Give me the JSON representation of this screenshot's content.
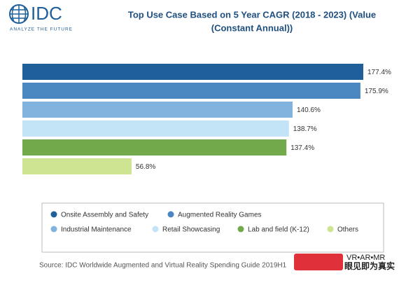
{
  "logo": {
    "name": "IDC",
    "tagline": "ANALYZE THE FUTURE"
  },
  "chart_data": {
    "type": "bar",
    "orientation": "horizontal",
    "title": [
      "Top Use Case Based on 5 Year CAGR  (2018 - 2023) (Value",
      "(Constant Annual))"
    ],
    "series": [
      {
        "name": "Onsite Assembly and Safety",
        "color": "#1f5f9a",
        "values": [
          177.4
        ],
        "value_labels": [
          "177.4%"
        ]
      },
      {
        "name": "Augmented Reality Games",
        "color": "#4a86bf",
        "values": [
          175.9
        ],
        "value_labels": [
          "175.9%"
        ]
      },
      {
        "name": "Industrial Maintenance",
        "color": "#82b3df",
        "values": [
          140.6
        ],
        "value_labels": [
          "140.6%"
        ]
      },
      {
        "name": "Retail Showcasing",
        "color": "#c3e3f7",
        "values": [
          138.7
        ],
        "value_labels": [
          "138.7%"
        ]
      },
      {
        "name": "Lab and field (K-12)",
        "color": "#72a94b",
        "values": [
          137.4
        ],
        "value_labels": [
          "137.4%"
        ]
      },
      {
        "name": "Others",
        "color": "#cee492",
        "values": [
          56.8
        ],
        "value_labels": [
          "56.8%"
        ]
      }
    ],
    "legend": "bottom",
    "source": "Source: IDC Worldwide Augmented and Virtual Reality Spending Guide 2019H1"
  },
  "watermark": {
    "line1": "VR•AR•MR",
    "line2": "眼见即为真实"
  }
}
